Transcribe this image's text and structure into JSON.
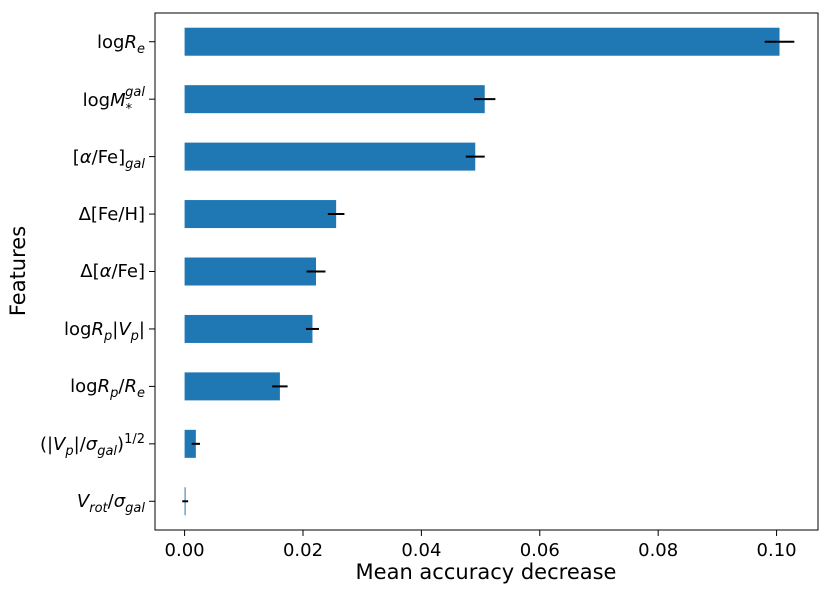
{
  "chart_data": {
    "type": "bar",
    "orientation": "horizontal",
    "xlabel": "Mean accuracy decrease",
    "ylabel": "Features",
    "xlim": [
      -0.005,
      0.107
    ],
    "xticks": [
      0.0,
      0.02,
      0.04,
      0.06,
      0.08,
      0.1
    ],
    "xtick_labels": [
      "0.00",
      "0.02",
      "0.04",
      "0.06",
      "0.08",
      "0.10"
    ],
    "bar_color": "#1f77b4",
    "error_color": "#000000",
    "grid": false,
    "bars": [
      {
        "label": "logR_e",
        "value": 0.1005,
        "error": 0.0025
      },
      {
        "label": "logM_*^gal",
        "value": 0.0507,
        "error": 0.0018
      },
      {
        "label": "[α/Fe]_gal",
        "value": 0.0491,
        "error": 0.0016
      },
      {
        "label": "Δ[Fe/H]",
        "value": 0.0256,
        "error": 0.0014
      },
      {
        "label": "Δ[α/Fe]",
        "value": 0.0222,
        "error": 0.0016
      },
      {
        "label": "logR_p|V_p|",
        "value": 0.0216,
        "error": 0.0011
      },
      {
        "label": "logR_p/R_e",
        "value": 0.0161,
        "error": 0.0013
      },
      {
        "label": "(|V_p|/σ_gal)^1/2",
        "value": 0.0019,
        "error": 0.0007
      },
      {
        "label": "V_rot/σ_gal",
        "value": 0.0001,
        "error": 0.0005
      }
    ]
  }
}
